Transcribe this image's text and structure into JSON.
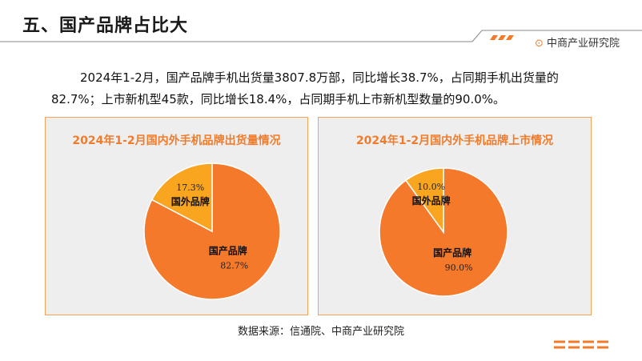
{
  "header": {
    "title": "五、国产品牌占比大",
    "brand": "中商产业研究院",
    "accent_color": "#f07c2b"
  },
  "summary": {
    "text": "2024年1-2月，国产品牌手机出货量3807.8万部，同比增长38.7%，占同期手机出货量的82.7%；上市新机型45款，同比增长18.4%，占同期手机上市新机型数量的90.0%。"
  },
  "source": {
    "text": "数据来源：信通院、中商产业研究院"
  },
  "chart_data": [
    {
      "type": "pie",
      "title": "2024年1-2月国内外手机品牌出货量情况",
      "slices": [
        {
          "name": "国产品牌",
          "value": 82.7,
          "label": "82.7%",
          "color": "#f5792a"
        },
        {
          "name": "国外品牌",
          "value": 17.3,
          "label": "17.3%",
          "color": "#f9a51f"
        }
      ]
    },
    {
      "type": "pie",
      "title": "2024年1-2月国内外手机品牌上市情况",
      "slices": [
        {
          "name": "国产品牌",
          "value": 90.0,
          "label": "90.0%",
          "color": "#f5792a"
        },
        {
          "name": "国外品牌",
          "value": 10.0,
          "label": "10.0%",
          "color": "#f9a51f"
        }
      ]
    }
  ]
}
